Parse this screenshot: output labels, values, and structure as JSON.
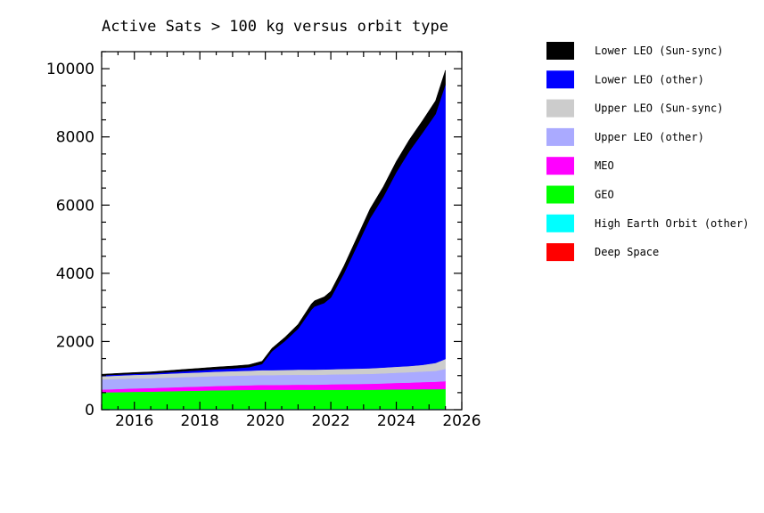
{
  "chart_data": {
    "type": "area",
    "stacked": true,
    "title": "Active Sats > 100 kg versus orbit type",
    "xlabel": "",
    "ylabel": "",
    "xlim": [
      2015.0,
      2026.0
    ],
    "ylim": [
      0,
      10500
    ],
    "x_ticks": [
      2016,
      2018,
      2020,
      2022,
      2024,
      2026
    ],
    "y_ticks": [
      0,
      2000,
      4000,
      6000,
      8000,
      10000
    ],
    "grid": false,
    "legend_position": "right",
    "x": [
      2015.0,
      2015.5,
      2016.0,
      2016.5,
      2017.0,
      2017.5,
      2018.0,
      2018.5,
      2019.0,
      2019.5,
      2019.9,
      2020.2,
      2020.6,
      2021.0,
      2021.4,
      2021.5,
      2021.8,
      2022.0,
      2022.4,
      2022.8,
      2023.2,
      2023.6,
      2024.0,
      2024.4,
      2024.8,
      2025.2,
      2025.5
    ],
    "series": [
      {
        "name": "Deep Space",
        "color": "#ff0000",
        "values": [
          10,
          10,
          10,
          10,
          10,
          10,
          10,
          10,
          10,
          10,
          10,
          10,
          10,
          10,
          10,
          10,
          10,
          10,
          10,
          10,
          10,
          10,
          10,
          10,
          10,
          10,
          10
        ]
      },
      {
        "name": "High Earth Orbit (other)",
        "color": "#00ffff",
        "values": [
          15,
          15,
          15,
          15,
          15,
          15,
          15,
          15,
          15,
          15,
          15,
          15,
          15,
          15,
          15,
          15,
          15,
          15,
          15,
          15,
          15,
          15,
          15,
          15,
          15,
          15,
          15
        ]
      },
      {
        "name": "GEO",
        "color": "#00ff00",
        "values": [
          485,
          490,
          500,
          505,
          515,
          525,
          535,
          545,
          550,
          555,
          560,
          560,
          560,
          560,
          560,
          560,
          560,
          560,
          560,
          560,
          560,
          565,
          570,
          570,
          575,
          575,
          580
        ]
      },
      {
        "name": "MEO",
        "color": "#ff00ff",
        "values": [
          80,
          90,
          100,
          105,
          110,
          115,
          120,
          125,
          130,
          135,
          140,
          140,
          145,
          150,
          150,
          150,
          155,
          160,
          165,
          170,
          175,
          180,
          190,
          200,
          210,
          220,
          230
        ]
      },
      {
        "name": "Upper LEO (other)",
        "color": "#aaaaff",
        "values": [
          300,
          300,
          295,
          290,
          290,
          290,
          290,
          290,
          290,
          290,
          290,
          290,
          290,
          290,
          290,
          290,
          290,
          290,
          290,
          290,
          290,
          295,
          300,
          305,
          310,
          320,
          360
        ]
      },
      {
        "name": "Upper LEO (Sun-sync)",
        "color": "#cccccc",
        "values": [
          90,
          95,
          100,
          110,
          115,
          120,
          125,
          130,
          135,
          140,
          145,
          145,
          145,
          150,
          150,
          150,
          150,
          150,
          155,
          160,
          165,
          170,
          175,
          180,
          195,
          230,
          290
        ]
      },
      {
        "name": "Lower LEO (other)",
        "color": "#0000ff",
        "values": [
          30,
          30,
          30,
          30,
          40,
          50,
          60,
          70,
          80,
          100,
          180,
          550,
          850,
          1200,
          1750,
          1850,
          1950,
          2100,
          2800,
          3600,
          4400,
          5000,
          5700,
          6300,
          6800,
          7300,
          8050
        ]
      },
      {
        "name": "Lower LEO (Sun-sync)",
        "color": "#000000",
        "values": [
          30,
          35,
          40,
          45,
          50,
          55,
          60,
          65,
          70,
          75,
          80,
          90,
          110,
          130,
          170,
          170,
          180,
          190,
          220,
          250,
          280,
          300,
          320,
          340,
          360,
          390,
          420
        ]
      }
    ],
    "legend": [
      {
        "name": "Lower LEO (Sun-sync)",
        "color": "#000000"
      },
      {
        "name": "Lower LEO (other)",
        "color": "#0000ff"
      },
      {
        "name": "Upper LEO (Sun-sync)",
        "color": "#cccccc"
      },
      {
        "name": "Upper LEO (other)",
        "color": "#aaaaff"
      },
      {
        "name": "MEO",
        "color": "#ff00ff"
      },
      {
        "name": "GEO",
        "color": "#00ff00"
      },
      {
        "name": "High Earth Orbit (other)",
        "color": "#00ffff"
      },
      {
        "name": "Deep Space",
        "color": "#ff0000"
      }
    ]
  }
}
